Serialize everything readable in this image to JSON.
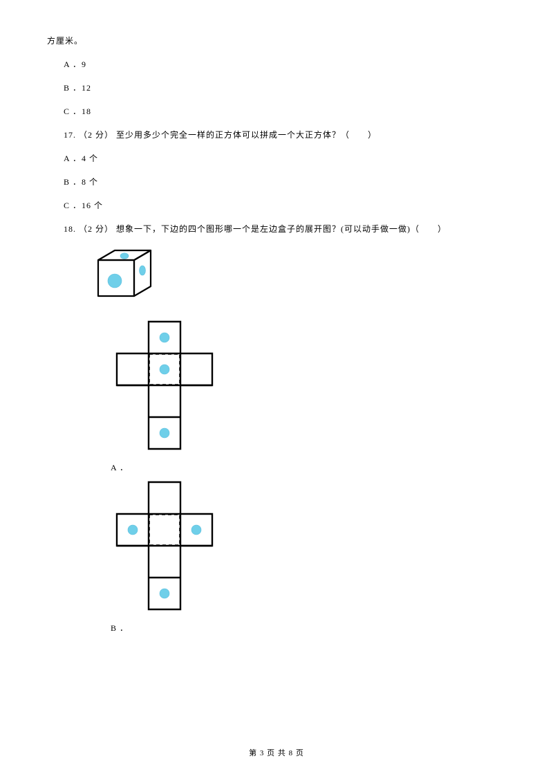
{
  "lines": {
    "continuation": "方厘米。",
    "opt_a_16": "A ．9",
    "opt_b_16": "B ．12",
    "opt_c_16": "C ．18",
    "q17": "17. （2 分） 至少用多少个完全一样的正方体可以拼成一个大正方体？（　　）",
    "opt_a_17": "A ．4 个",
    "opt_b_17": "B ．8 个",
    "opt_c_17": "C ．16 个",
    "q18": "18. （2 分） 想象一下，下边的四个图形哪一个是左边盒子的展开图？(可以动手做一做)（　　）",
    "label_a": "A ．",
    "label_b": "B ．",
    "footer": "第 3 页 共 8 页"
  },
  "colors": {
    "text": "#000000",
    "dot": "#6fcfe9",
    "dot_stroke": "#5cbedd",
    "line": "#000000",
    "bg": "#ffffff"
  },
  "cube": {
    "width": 90,
    "height": 85,
    "stroke_width": 2.2
  },
  "netA": {
    "cell": 46,
    "stroke_width": 2.4,
    "dot_r": 7,
    "dots": [
      {
        "col": 1,
        "row": 0
      },
      {
        "col": 1,
        "row": 1
      },
      {
        "col": 1,
        "row": 3
      }
    ],
    "dashed_face": {
      "col": 1,
      "row": 1
    }
  },
  "netB": {
    "cell": 46,
    "stroke_width": 2.4,
    "dot_r": 7,
    "dots": [
      {
        "col": 0,
        "row": 1
      },
      {
        "col": 2,
        "row": 1
      },
      {
        "col": 1,
        "row": 3
      }
    ],
    "dashed_face": {
      "col": 1,
      "row": 1
    }
  }
}
